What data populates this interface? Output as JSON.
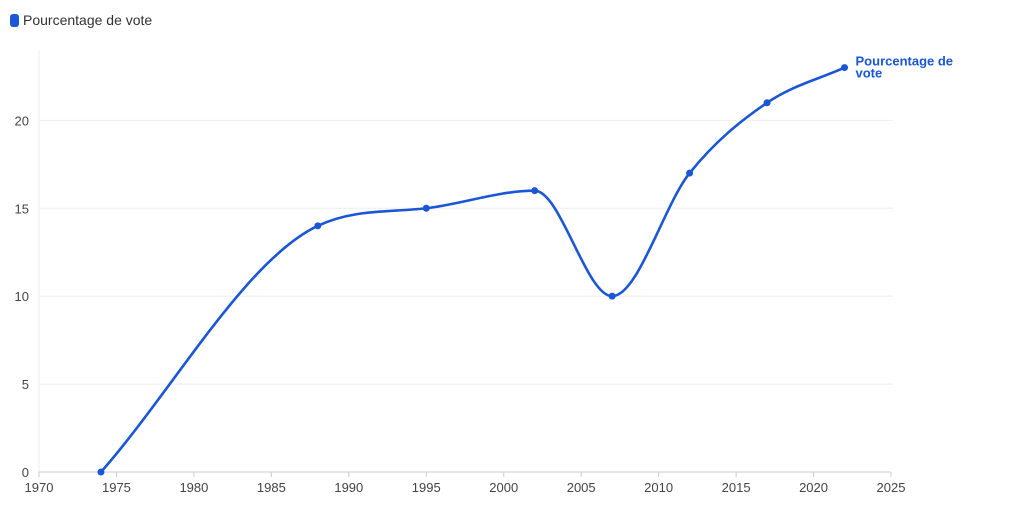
{
  "legend": {
    "label": "Pourcentage de vote"
  },
  "colors": {
    "series": "#1a56d6",
    "grid": "#eeeeee",
    "axis": "#cccccc"
  },
  "chart_data": {
    "type": "line",
    "title": "",
    "xlabel": "",
    "ylabel": "",
    "xlim": [
      1970,
      2025
    ],
    "ylim": [
      0,
      24
    ],
    "x_ticks": [
      1970,
      1975,
      1980,
      1985,
      1990,
      1995,
      2000,
      2005,
      2010,
      2015,
      2020,
      2025
    ],
    "y_ticks": [
      0,
      5,
      10,
      15,
      20
    ],
    "grid": true,
    "legend_position": "top-left",
    "series": [
      {
        "name": "Pourcentage de vote",
        "end_label": [
          "Pourcentage de",
          "vote"
        ],
        "x": [
          1974,
          1988,
          1995,
          2002,
          2007,
          2012,
          2017,
          2022
        ],
        "y": [
          0,
          14,
          15,
          16,
          10,
          17,
          21,
          23
        ]
      }
    ]
  }
}
